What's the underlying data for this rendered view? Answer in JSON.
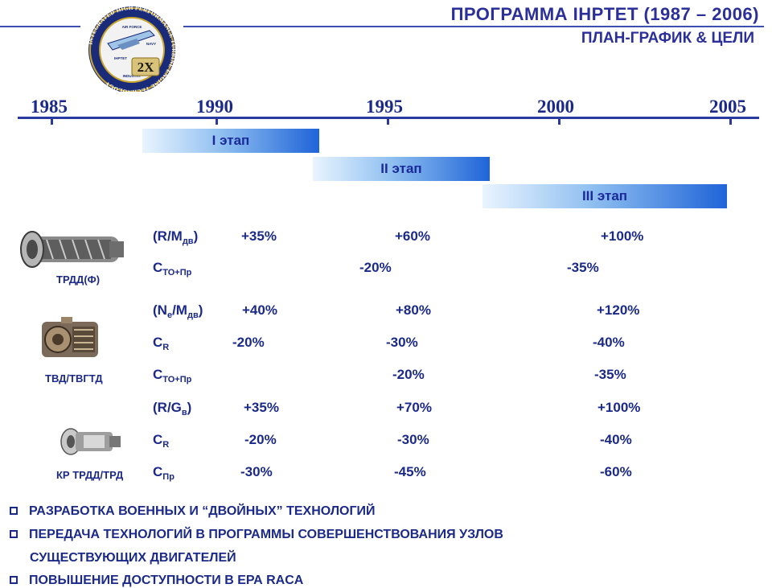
{
  "header": {
    "title": "ПРОГРАММА IHPTET (1987 – 2006)",
    "subtitle": "ПЛАН-ГРАФИК & ЦЕЛИ"
  },
  "emblem": {
    "ring_text": "INTEGRATED HIGH PERFORMANCE TURBINE ENGINE TECHNOLOGY",
    "inner_top": "AIR FORCE",
    "inner_center": "IHPTET",
    "inner_right": "NAVY",
    "inner_bottom": "INDUSTRY",
    "badge": "2X"
  },
  "timeline": {
    "years": [
      "1985",
      "1990",
      "1995",
      "2000",
      "2005"
    ],
    "stages": [
      "I этап",
      "II этап",
      "III этап"
    ]
  },
  "engines": [
    {
      "label": "ТРДД(Ф)",
      "icon": "turbofan-engine-icon",
      "rows": [
        {
          "param": "(R/M",
          "sub": "дв",
          "tail": ")",
          "v1": "+35%",
          "v2": "+60%",
          "v3": "+100%"
        },
        {
          "param": "C",
          "sub": "ТО+Пр",
          "tail": "",
          "v1": "",
          "v2": "-20%",
          "v3": "-35%"
        }
      ]
    },
    {
      "label": "ТВД/ТВГТД",
      "icon": "turboshaft-engine-icon",
      "rows": [
        {
          "param": "(N",
          "sub": "e",
          "tail": "/M",
          "sub2": "дв",
          "tail2": ")",
          "v1": "+40%",
          "v2": "+80%",
          "v3": "+120%"
        },
        {
          "param": "C",
          "sub": "R",
          "tail": "",
          "v1": "-20%",
          "v2": "-30%",
          "v3": "-40%"
        },
        {
          "param": "C",
          "sub": "ТО+Пр",
          "tail": "",
          "v1": "",
          "v2": "-20%",
          "v3": "-35%"
        }
      ]
    },
    {
      "label": "КР ТРДД/ТРД",
      "icon": "missile-engine-icon",
      "rows": [
        {
          "param": "(R/G",
          "sub": "в",
          "tail": ")",
          "v1": "+35%",
          "v2": "+70%",
          "v3": "+100%"
        },
        {
          "param": "C",
          "sub": "R",
          "tail": "",
          "v1": "-20%",
          "v2": "-30%",
          "v3": "-40%"
        },
        {
          "param": "C",
          "sub": "Пр",
          "tail": "",
          "v1": "-30%",
          "v2": "-45%",
          "v3": "-60%"
        }
      ]
    }
  ],
  "bullets": [
    "РАЗРАБОТКА ВОЕННЫХ И “ДВОЙНЫХ” ТЕХНОЛОГИЙ",
    "ПЕРЕДАЧА ТЕХНОЛОГИЙ В ПРОГРАММЫ СОВЕРШЕНСТВОВАНИЯ УЗЛОВ",
    "СУЩЕСТВУЮЩИХ  ДВИГАТЕЛЕЙ",
    "ПОВЫШЕНИЕ ДОСТУПНОСТИ В ЕРА RACA"
  ]
}
